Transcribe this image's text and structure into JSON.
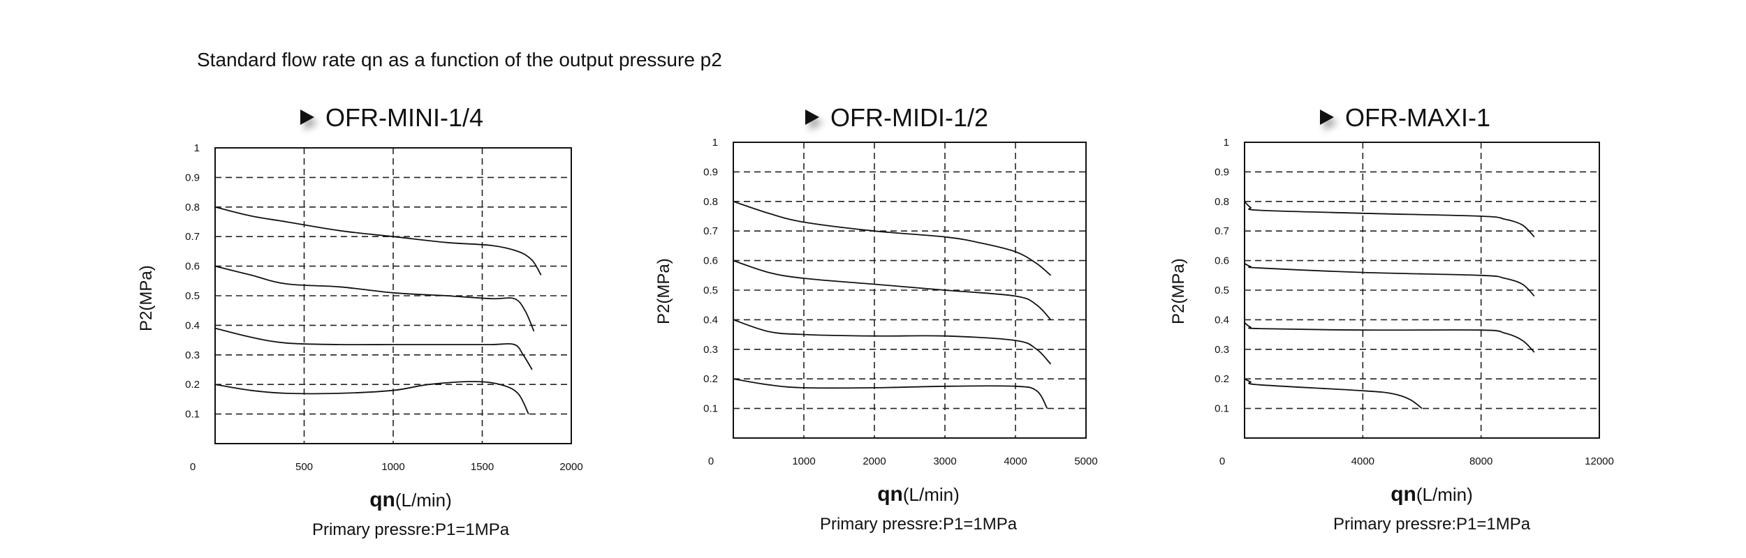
{
  "page": {
    "title": "Standard flow rate qn as a function of the output pressure p2"
  },
  "chart_data": [
    {
      "type": "line",
      "title": "OFR-MINI-1/4",
      "xlabel_bold": "qn",
      "xlabel_unit": "(L/min)",
      "ylabel": "P2(MPa)",
      "note": "Primary pressre:P1=1MPa",
      "xlim": [
        0,
        2000
      ],
      "ylim": [
        0,
        1
      ],
      "x_ticks": [
        0,
        500,
        1000,
        1500,
        2000
      ],
      "y_ticks": [
        0.1,
        0.2,
        0.3,
        0.4,
        0.5,
        0.6,
        0.7,
        0.8,
        0.9,
        1
      ],
      "grid": true,
      "series": [
        {
          "points": [
            [
              0,
              0.8
            ],
            [
              200,
              0.77
            ],
            [
              400,
              0.75
            ],
            [
              700,
              0.72
            ],
            [
              1000,
              0.7
            ],
            [
              1300,
              0.68
            ],
            [
              1550,
              0.67
            ],
            [
              1700,
              0.65
            ],
            [
              1780,
              0.62
            ],
            [
              1830,
              0.57
            ]
          ]
        },
        {
          "points": [
            [
              0,
              0.6
            ],
            [
              200,
              0.57
            ],
            [
              400,
              0.54
            ],
            [
              700,
              0.53
            ],
            [
              1000,
              0.51
            ],
            [
              1300,
              0.5
            ],
            [
              1550,
              0.49
            ],
            [
              1680,
              0.49
            ],
            [
              1740,
              0.45
            ],
            [
              1790,
              0.38
            ]
          ]
        },
        {
          "points": [
            [
              0,
              0.39
            ],
            [
              200,
              0.36
            ],
            [
              400,
              0.34
            ],
            [
              700,
              0.335
            ],
            [
              1000,
              0.335
            ],
            [
              1300,
              0.335
            ],
            [
              1550,
              0.335
            ],
            [
              1680,
              0.335
            ],
            [
              1730,
              0.3
            ],
            [
              1780,
              0.25
            ]
          ]
        },
        {
          "points": [
            [
              0,
              0.2
            ],
            [
              200,
              0.18
            ],
            [
              400,
              0.17
            ],
            [
              700,
              0.17
            ],
            [
              1000,
              0.18
            ],
            [
              1200,
              0.2
            ],
            [
              1450,
              0.21
            ],
            [
              1600,
              0.2
            ],
            [
              1700,
              0.17
            ],
            [
              1760,
              0.1
            ]
          ]
        }
      ]
    },
    {
      "type": "line",
      "title": "OFR-MIDI-1/2",
      "xlabel_bold": "qn",
      "xlabel_unit": "(L/min)",
      "ylabel": "P2(MPa)",
      "note": "Primary pressre:P1=1MPa",
      "xlim": [
        0,
        5000
      ],
      "ylim": [
        0,
        1
      ],
      "x_ticks": [
        0,
        1000,
        2000,
        3000,
        4000,
        5000
      ],
      "y_ticks": [
        0.1,
        0.2,
        0.3,
        0.4,
        0.5,
        0.6,
        0.7,
        0.8,
        0.9,
        1
      ],
      "grid": true,
      "series": [
        {
          "points": [
            [
              0,
              0.8
            ],
            [
              500,
              0.76
            ],
            [
              1000,
              0.73
            ],
            [
              2000,
              0.7
            ],
            [
              3000,
              0.68
            ],
            [
              3500,
              0.66
            ],
            [
              4000,
              0.63
            ],
            [
              4300,
              0.59
            ],
            [
              4500,
              0.55
            ]
          ]
        },
        {
          "points": [
            [
              0,
              0.6
            ],
            [
              500,
              0.56
            ],
            [
              1000,
              0.54
            ],
            [
              2000,
              0.52
            ],
            [
              3000,
              0.5
            ],
            [
              4000,
              0.48
            ],
            [
              4300,
              0.45
            ],
            [
              4500,
              0.4
            ]
          ]
        },
        {
          "points": [
            [
              0,
              0.4
            ],
            [
              500,
              0.36
            ],
            [
              1000,
              0.35
            ],
            [
              2000,
              0.345
            ],
            [
              3000,
              0.345
            ],
            [
              4000,
              0.33
            ],
            [
              4300,
              0.3
            ],
            [
              4500,
              0.25
            ]
          ]
        },
        {
          "points": [
            [
              0,
              0.2
            ],
            [
              500,
              0.18
            ],
            [
              1000,
              0.17
            ],
            [
              2000,
              0.17
            ],
            [
              3000,
              0.175
            ],
            [
              4000,
              0.175
            ],
            [
              4300,
              0.16
            ],
            [
              4450,
              0.1
            ]
          ]
        }
      ]
    },
    {
      "type": "line",
      "title": "OFR-MAXI-1",
      "xlabel_bold": "qn",
      "xlabel_unit": "(L/min)",
      "ylabel": "P2(MPa)",
      "note": "Primary pressre:P1=1MPa",
      "xlim": [
        0,
        12000
      ],
      "ylim": [
        0,
        1
      ],
      "x_ticks": [
        0,
        4000,
        8000,
        12000
      ],
      "y_ticks": [
        0.1,
        0.2,
        0.3,
        0.4,
        0.5,
        0.6,
        0.7,
        0.8,
        0.9,
        1
      ],
      "grid": true,
      "series": [
        {
          "points": [
            [
              0,
              0.8
            ],
            [
              200,
              0.78
            ],
            [
              500,
              0.77
            ],
            [
              4000,
              0.76
            ],
            [
              8000,
              0.75
            ],
            [
              8800,
              0.74
            ],
            [
              9400,
              0.72
            ],
            [
              9800,
              0.68
            ]
          ]
        },
        {
          "points": [
            [
              0,
              0.59
            ],
            [
              200,
              0.58
            ],
            [
              500,
              0.575
            ],
            [
              4000,
              0.56
            ],
            [
              8000,
              0.55
            ],
            [
              8800,
              0.54
            ],
            [
              9400,
              0.52
            ],
            [
              9800,
              0.48
            ]
          ]
        },
        {
          "points": [
            [
              0,
              0.39
            ],
            [
              200,
              0.375
            ],
            [
              500,
              0.37
            ],
            [
              4000,
              0.365
            ],
            [
              8000,
              0.365
            ],
            [
              8800,
              0.355
            ],
            [
              9400,
              0.33
            ],
            [
              9800,
              0.29
            ]
          ]
        },
        {
          "points": [
            [
              0,
              0.2
            ],
            [
              200,
              0.19
            ],
            [
              500,
              0.18
            ],
            [
              4000,
              0.16
            ],
            [
              5000,
              0.15
            ],
            [
              5600,
              0.13
            ],
            [
              6000,
              0.1
            ]
          ]
        }
      ]
    }
  ]
}
